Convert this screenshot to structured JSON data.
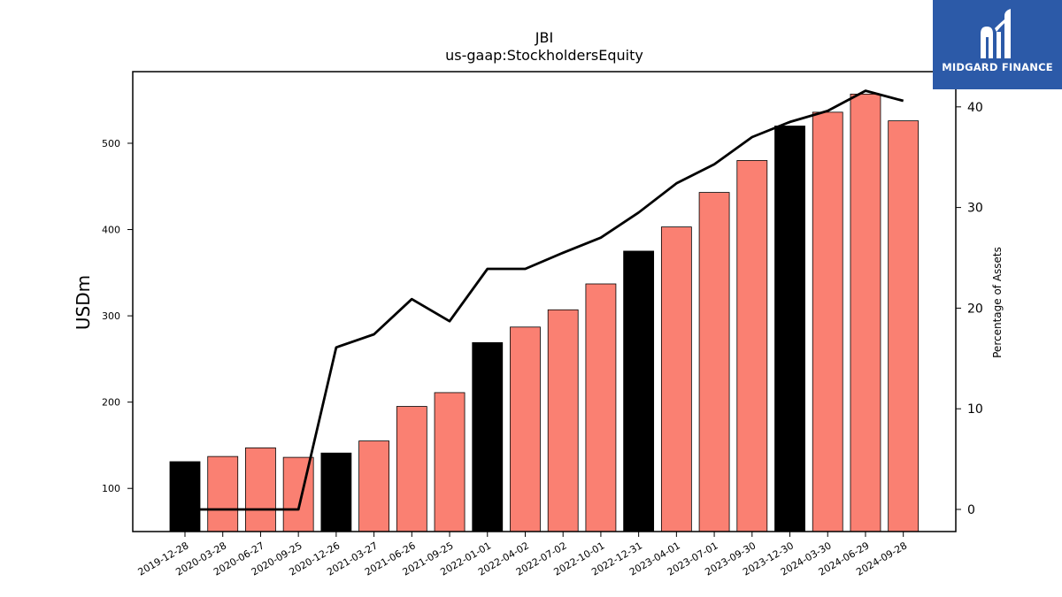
{
  "brand": {
    "name": "MIDGARD FINANCE",
    "color": "#2c5aa8"
  },
  "chart_data": {
    "type": "bar",
    "title": "JBI",
    "subtitle": "us-gaap:StockholdersEquity",
    "ylabel": "USDm",
    "y2label": "Percentage of Assets",
    "ylim": [
      50,
      583
    ],
    "y2lim": [
      -2.2,
      43.5
    ],
    "yticks": [
      100,
      200,
      300,
      400,
      500
    ],
    "y2ticks": [
      0,
      10,
      20,
      30,
      40
    ],
    "categories": [
      "2019-12-28",
      "2020-03-28",
      "2020-06-27",
      "2020-09-25",
      "2020-12-26",
      "2021-03-27",
      "2021-06-26",
      "2021-09-25",
      "2022-01-01",
      "2022-04-02",
      "2022-07-02",
      "2022-10-01",
      "2022-12-31",
      "2023-04-01",
      "2023-07-01",
      "2023-09-30",
      "2023-12-30",
      "2024-03-30",
      "2024-06-29",
      "2024-09-28"
    ],
    "series": [
      {
        "type": "bar",
        "values": [
          131,
          137,
          147,
          136,
          141,
          155,
          195,
          211,
          269,
          287,
          307,
          337,
          375,
          403,
          443,
          480,
          520,
          536,
          557,
          526
        ],
        "colors": [
          "#000000",
          "#fa8072",
          "#fa8072",
          "#fa8072",
          "#000000",
          "#fa8072",
          "#fa8072",
          "#fa8072",
          "#000000",
          "#fa8072",
          "#fa8072",
          "#fa8072",
          "#000000",
          "#fa8072",
          "#fa8072",
          "#fa8072",
          "#000000",
          "#fa8072",
          "#fa8072",
          "#fa8072"
        ]
      },
      {
        "type": "line",
        "axis": "right",
        "color": "#000000",
        "values": [
          0,
          0,
          0,
          0,
          16.1,
          17.4,
          20.9,
          18.7,
          23.9,
          23.9,
          25.5,
          27,
          29.5,
          32.4,
          34.3,
          37,
          38.5,
          39.6,
          41.6,
          40.6
        ]
      }
    ]
  }
}
